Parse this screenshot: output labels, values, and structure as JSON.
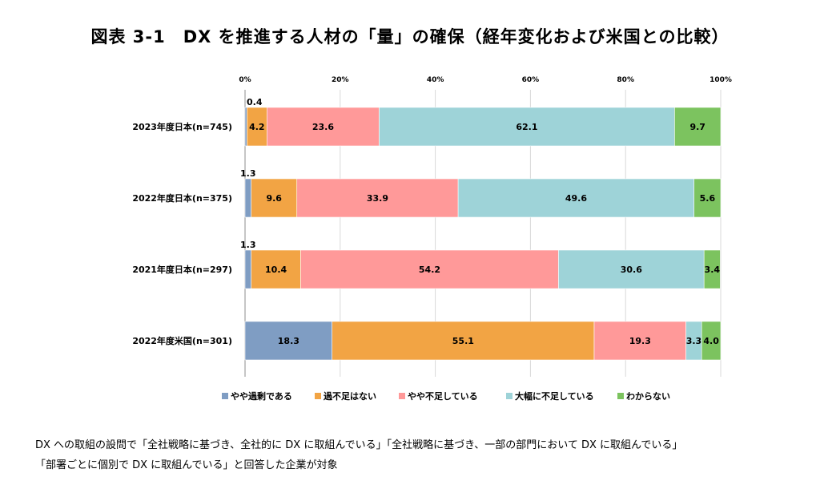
{
  "page": {
    "title": "図表 3-1　DX を推進する人材の「量」の確保（経年変化および米国との比較）",
    "notes": [
      "DX への取組の設問で「全社戦略に基づき、全社的に DX に取組んでいる」「全社戦略に基づき、一部の部門において DX に取組んでいる」",
      "「部署ごとに個別で DX に取組んでいる」と回答した企業が対象"
    ]
  },
  "chart_data": {
    "type": "bar",
    "orientation": "horizontal",
    "stacked": true,
    "percent_stacked": true,
    "title": "図表 3-1　DX を推進する人材の「量」の確保（経年変化および米国との比較）",
    "categories": [
      "2023年度日本(n=745)",
      "2022年度日本(n=375)",
      "2021年度日本(n=297)",
      "2022年度米国(n=301)"
    ],
    "series": [
      {
        "name": "やや過剰である",
        "color": "#7f9dc3",
        "values": [
          0.4,
          1.3,
          1.3,
          18.3
        ]
      },
      {
        "name": "過不足はない",
        "color": "#f2a444",
        "values": [
          4.2,
          9.6,
          10.4,
          55.1
        ]
      },
      {
        "name": "やや不足している",
        "color": "#ff9999",
        "values": [
          23.6,
          33.9,
          54.2,
          19.3
        ]
      },
      {
        "name": "大幅に不足している",
        "color": "#9ed3d8",
        "values": [
          62.1,
          49.6,
          30.6,
          3.3
        ]
      },
      {
        "name": "わからない",
        "color": "#7cc35f",
        "values": [
          9.7,
          5.6,
          3.4,
          4.0
        ]
      }
    ],
    "xlim": [
      0,
      100
    ],
    "xticks": [
      "0%",
      "20%",
      "40%",
      "60%",
      "80%",
      "100%"
    ],
    "grid": true,
    "legend": "bottom"
  }
}
